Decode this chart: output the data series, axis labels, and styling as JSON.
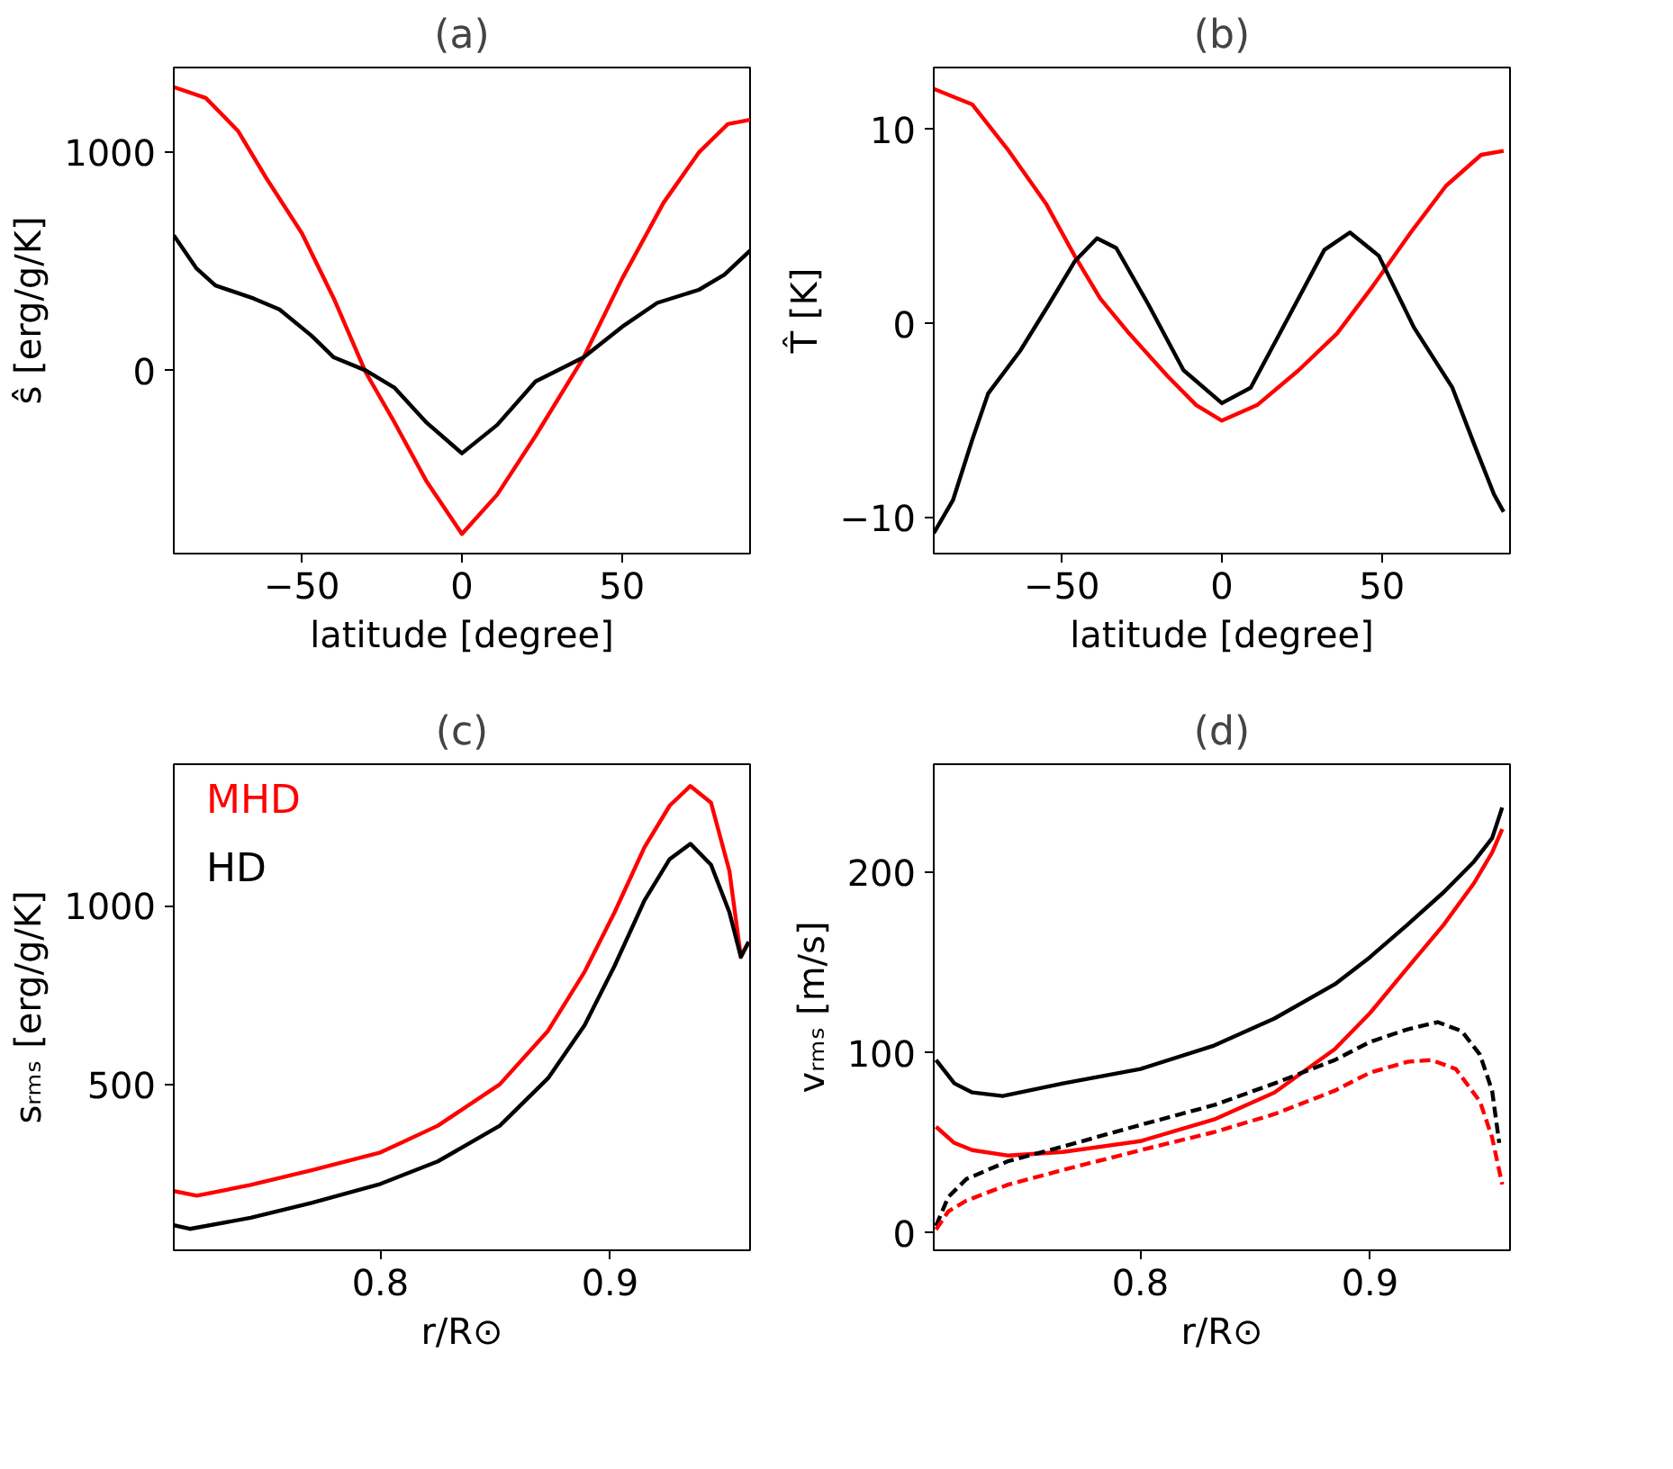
{
  "chart_data": [
    {
      "type": "line",
      "title": "(a)",
      "xlabel": "latitude [degree]",
      "ylabel": "ŝ [erg/g/K]",
      "xlim": [
        -90,
        90
      ],
      "xticks": [
        {
          "value": -50,
          "label": "−50"
        },
        0,
        50
      ],
      "ylim": [
        -840,
        1390
      ],
      "yticks": [
        0,
        1000
      ],
      "grid": false,
      "line_style": "solid",
      "marker": "none",
      "series": [
        {
          "color": "#ff0000",
          "x": [
            -90,
            -80,
            -70,
            -61,
            -50,
            -40,
            -30,
            -21,
            -11,
            0,
            11,
            23,
            38,
            50,
            63,
            74,
            83,
            90
          ],
          "values": [
            1300,
            1250,
            1100,
            880,
            630,
            330,
            -10,
            -240,
            -510,
            -750,
            -570,
            -300,
            60,
            420,
            770,
            1000,
            1130,
            1150
          ]
        },
        {
          "color": "#000000",
          "x": [
            -90,
            -83,
            -77,
            -65,
            -57,
            -47,
            -40,
            -30,
            -21,
            -11,
            0,
            11,
            23,
            38,
            50,
            61,
            74,
            82,
            90
          ],
          "values": [
            620,
            470,
            390,
            330,
            280,
            160,
            60,
            0,
            -80,
            -240,
            -380,
            -250,
            -50,
            60,
            200,
            310,
            370,
            440,
            550
          ]
        }
      ]
    },
    {
      "type": "line",
      "title": "(b)",
      "xlabel": "latitude [degree]",
      "ylabel": "T̂ [K]",
      "xlim": [
        -90,
        90
      ],
      "xticks": [
        {
          "value": -50,
          "label": "−50"
        },
        0,
        50
      ],
      "ylim": [
        -11.85,
        13.2
      ],
      "yticks": [
        {
          "value": -10,
          "label": "−10"
        },
        0,
        10
      ],
      "grid": false,
      "line_style": "solid",
      "marker": "none",
      "series": [
        {
          "color": "#ff0000",
          "x": [
            -90,
            -78,
            -67,
            -55,
            -46,
            -38,
            -29,
            -17,
            -8,
            0,
            11,
            24,
            36,
            47,
            59,
            70,
            81,
            88
          ],
          "values": [
            12.1,
            11.3,
            9.0,
            6.2,
            3.5,
            1.3,
            -0.5,
            -2.7,
            -4.2,
            -5.0,
            -4.2,
            -2.4,
            -0.5,
            1.9,
            4.7,
            7.1,
            8.7,
            8.9
          ]
        },
        {
          "color": "#000000",
          "x": [
            -90,
            -84,
            -78,
            -73,
            -63,
            -54,
            -46,
            -39,
            -33,
            -23,
            -12,
            0,
            9,
            21,
            32,
            40,
            49,
            60,
            72,
            79,
            85,
            88
          ],
          "values": [
            -10.8,
            -9.1,
            -6.0,
            -3.6,
            -1.4,
            1.0,
            3.2,
            4.4,
            3.9,
            1.0,
            -2.4,
            -4.1,
            -3.3,
            0.4,
            3.8,
            4.7,
            3.5,
            -0.2,
            -3.3,
            -6.3,
            -8.8,
            -9.7
          ]
        }
      ]
    },
    {
      "type": "line",
      "title": "(c)",
      "xlabel": "r/R⊙",
      "ylabel": "sᵣₘₛ [erg/g/K]",
      "xlim": [
        0.71,
        0.961
      ],
      "xticks": [
        0.8,
        0.9
      ],
      "ylim": [
        35,
        1397
      ],
      "yticks": [
        500,
        1000
      ],
      "grid": false,
      "legend": "top left",
      "line_style": "solid",
      "marker": "none",
      "series": [
        {
          "name": "MHD",
          "color": "#ff0000",
          "x": [
            0.71,
            0.72,
            0.7435,
            0.77,
            0.8,
            0.825,
            0.852,
            0.873,
            0.889,
            0.902,
            0.915,
            0.926,
            0.935,
            0.944,
            0.952,
            0.957,
            0.9604
          ],
          "values": [
            201,
            188,
            218,
            259,
            309,
            384,
            500,
            650,
            816,
            982,
            1164,
            1281,
            1336,
            1289,
            1098,
            857,
            899
          ]
        },
        {
          "name": "HD",
          "color": "#000000",
          "x": [
            0.71,
            0.717,
            0.7435,
            0.77,
            0.8,
            0.825,
            0.852,
            0.873,
            0.889,
            0.902,
            0.915,
            0.926,
            0.935,
            0.944,
            0.952,
            0.957,
            0.9604
          ],
          "values": [
            105,
            95,
            126,
            168,
            221,
            284,
            384,
            517,
            666,
            832,
            1015,
            1131,
            1174,
            1115,
            982,
            857,
            899
          ]
        }
      ]
    },
    {
      "type": "line",
      "title": "(d)",
      "xlabel": "r/R⊙",
      "ylabel": "vᵣₘₛ [m/s]",
      "xlim": [
        0.71,
        0.961
      ],
      "xticks": [
        0.8,
        0.9
      ],
      "ylim": [
        -9.5,
        260
      ],
      "yticks": [
        0,
        100,
        200
      ],
      "grid": false,
      "marker": "none",
      "series": [
        {
          "color": "#000000",
          "line_style": "solid",
          "x": [
            0.711,
            0.719,
            0.7268,
            0.74,
            0.7663,
            0.8,
            0.8321,
            0.8584,
            0.8847,
            0.9,
            0.9163,
            0.9321,
            0.9453,
            0.9532,
            0.9576
          ],
          "values": [
            96,
            83,
            78,
            76,
            83,
            91,
            104,
            119,
            138,
            153,
            171,
            189,
            206,
            219,
            236
          ]
        },
        {
          "color": "#ff0000",
          "line_style": "solid",
          "x": [
            0.711,
            0.719,
            0.7268,
            0.7426,
            0.7663,
            0.8,
            0.8321,
            0.8584,
            0.8847,
            0.9,
            0.9163,
            0.9321,
            0.9453,
            0.9532,
            0.9576
          ],
          "values": [
            59,
            50,
            46,
            43,
            45,
            51,
            63,
            78,
            102,
            122,
            147,
            171,
            194,
            211,
            224
          ]
        },
        {
          "color": "#000000",
          "line_style": "dashed",
          "x": [
            0.711,
            0.7163,
            0.7242,
            0.7426,
            0.7663,
            0.8,
            0.8321,
            0.8584,
            0.8847,
            0.9,
            0.9163,
            0.9295,
            0.94,
            0.9479,
            0.9532,
            0.9563
          ],
          "values": [
            4,
            20,
            30,
            40,
            48,
            60,
            71,
            83,
            96,
            106,
            113,
            117,
            112,
            99,
            79,
            50
          ]
        },
        {
          "color": "#ff0000",
          "line_style": "dashed",
          "x": [
            0.711,
            0.7163,
            0.7242,
            0.7426,
            0.7663,
            0.8,
            0.8321,
            0.8584,
            0.8847,
            0.9,
            0.9163,
            0.9268,
            0.9374,
            0.9479,
            0.9532,
            0.9576
          ],
          "values": [
            2,
            12,
            18,
            27,
            35,
            46,
            56,
            66,
            79,
            89,
            95,
            96,
            91,
            73,
            53,
            27
          ]
        }
      ]
    }
  ]
}
